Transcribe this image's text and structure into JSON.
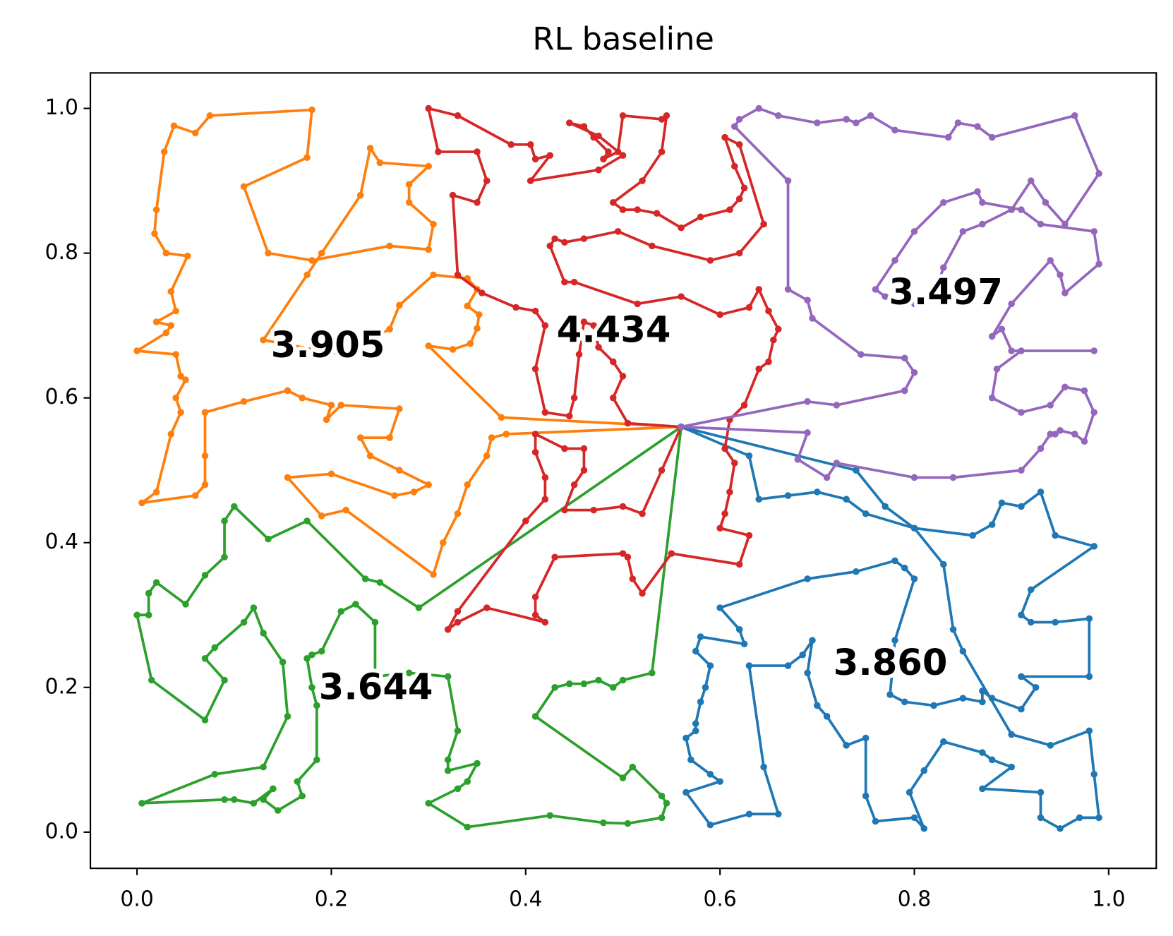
{
  "chart_data": {
    "type": "route",
    "title": "RL baseline",
    "xlim": [
      -0.048,
      1.049
    ],
    "ylim": [
      -0.05,
      1.049
    ],
    "xticks": [
      {
        "value": 0,
        "label": "0.0"
      },
      0.2,
      0.4,
      0.6,
      0.8,
      {
        "value": 1,
        "label": "1.0"
      }
    ],
    "yticks": [
      {
        "value": 0,
        "label": "0.0"
      },
      0.2,
      0.4,
      0.6,
      0.8,
      {
        "value": 1,
        "label": "1.0"
      }
    ],
    "series": [
      {
        "color": "#1f77b4",
        "label": "3.860",
        "x": [
          0.56,
          0.63,
          0.64,
          0.67,
          0.7,
          0.73,
          0.75,
          0.8,
          0.86,
          0.88,
          0.89,
          0.91,
          0.93,
          0.945,
          0.985,
          0.92,
          0.91,
          0.92,
          0.945,
          0.98,
          0.98,
          0.91,
          0.925,
          0.91,
          0.88,
          0.87,
          0.87,
          0.85,
          0.82,
          0.79,
          0.775,
          0.78,
          0.8,
          0.79,
          0.78,
          0.74,
          0.69,
          0.6,
          0.62,
          0.625,
          0.58,
          0.575,
          0.59,
          0.585,
          0.58,
          0.575,
          0.575,
          0.565,
          0.57,
          0.59,
          0.6,
          0.565,
          0.59,
          0.63,
          0.66,
          0.645,
          0.63,
          0.67,
          0.685,
          0.695,
          0.69,
          0.7,
          0.71,
          0.73,
          0.75,
          0.75,
          0.76,
          0.8,
          0.81,
          0.795,
          0.81,
          0.83,
          0.87,
          0.88,
          0.9,
          0.87,
          0.93,
          0.93,
          0.95,
          0.97,
          0.99,
          0.985,
          0.98,
          0.94,
          0.9,
          0.85,
          0.84,
          0.83,
          0.8,
          0.77,
          0.74,
          0.56
        ],
        "y": [
          0.56,
          0.52,
          0.46,
          0.465,
          0.47,
          0.46,
          0.44,
          0.42,
          0.41,
          0.425,
          0.455,
          0.45,
          0.47,
          0.41,
          0.395,
          0.335,
          0.3,
          0.29,
          0.29,
          0.295,
          0.215,
          0.215,
          0.2,
          0.17,
          0.185,
          0.195,
          0.18,
          0.185,
          0.175,
          0.18,
          0.19,
          0.265,
          0.35,
          0.365,
          0.375,
          0.36,
          0.35,
          0.31,
          0.28,
          0.26,
          0.27,
          0.25,
          0.23,
          0.2,
          0.18,
          0.15,
          0.14,
          0.13,
          0.1,
          0.08,
          0.07,
          0.055,
          0.01,
          0.025,
          0.025,
          0.09,
          0.23,
          0.23,
          0.245,
          0.265,
          0.22,
          0.175,
          0.16,
          0.12,
          0.13,
          0.05,
          0.015,
          0.02,
          0.005,
          0.055,
          0.085,
          0.125,
          0.11,
          0.1,
          0.09,
          0.06,
          0.055,
          0.02,
          0.005,
          0.02,
          0.02,
          0.08,
          0.14,
          0.12,
          0.135,
          0.25,
          0.28,
          0.37,
          0.42,
          0.45,
          0.5,
          0.56
        ]
      },
      {
        "color": "#ff7f0e",
        "label": "3.905",
        "x": [
          0.56,
          0.375,
          0.3,
          0.325,
          0.343,
          0.35,
          0.352,
          0.34,
          0.35,
          0.34,
          0.305,
          0.27,
          0.26,
          0.21,
          0.13,
          0.175,
          0.19,
          0.23,
          0.24,
          0.25,
          0.3,
          0.28,
          0.28,
          0.305,
          0.3,
          0.26,
          0.18,
          0.135,
          0.11,
          0.175,
          0.18,
          0.075,
          0.06,
          0.038,
          0.028,
          0.02,
          0.018,
          0.03,
          0.052,
          0.035,
          0.04,
          0.02,
          0.035,
          0.03,
          0.0,
          0.04,
          0.045,
          0.05,
          0.04,
          0.045,
          0.035,
          0.02,
          0.005,
          0.06,
          0.07,
          0.07,
          0.07,
          0.11,
          0.155,
          0.17,
          0.2,
          0.195,
          0.21,
          0.27,
          0.26,
          0.23,
          0.24,
          0.27,
          0.3,
          0.285,
          0.265,
          0.2,
          0.155,
          0.19,
          0.215,
          0.305,
          0.315,
          0.33,
          0.34,
          0.36,
          0.365,
          0.38,
          0.56
        ],
        "y": [
          0.56,
          0.573,
          0.672,
          0.667,
          0.675,
          0.696,
          0.715,
          0.727,
          0.75,
          0.765,
          0.77,
          0.728,
          0.695,
          0.66,
          0.68,
          0.77,
          0.8,
          0.88,
          0.945,
          0.925,
          0.92,
          0.895,
          0.87,
          0.84,
          0.805,
          0.81,
          0.79,
          0.8,
          0.892,
          0.932,
          0.998,
          0.99,
          0.966,
          0.976,
          0.94,
          0.86,
          0.827,
          0.8,
          0.796,
          0.747,
          0.72,
          0.705,
          0.7,
          0.69,
          0.665,
          0.66,
          0.63,
          0.625,
          0.6,
          0.58,
          0.55,
          0.47,
          0.455,
          0.465,
          0.48,
          0.52,
          0.58,
          0.595,
          0.61,
          0.6,
          0.59,
          0.57,
          0.59,
          0.585,
          0.545,
          0.545,
          0.52,
          0.5,
          0.48,
          0.47,
          0.465,
          0.495,
          0.49,
          0.437,
          0.445,
          0.356,
          0.4,
          0.44,
          0.48,
          0.52,
          0.545,
          0.55,
          0.56
        ]
      },
      {
        "color": "#2ca02c",
        "label": "3.644",
        "x": [
          0.56,
          0.53,
          0.5,
          0.49,
          0.475,
          0.46,
          0.445,
          0.43,
          0.41,
          0.5,
          0.51,
          0.54,
          0.545,
          0.54,
          0.505,
          0.48,
          0.425,
          0.34,
          0.3,
          0.33,
          0.34,
          0.35,
          0.32,
          0.32,
          0.33,
          0.32,
          0.28,
          0.245,
          0.245,
          0.225,
          0.21,
          0.19,
          0.18,
          0.175,
          0.18,
          0.185,
          0.185,
          0.165,
          0.17,
          0.145,
          0.13,
          0.14,
          0.12,
          0.1,
          0.09,
          0.005,
          0.08,
          0.13,
          0.155,
          0.15,
          0.13,
          0.12,
          0.11,
          0.08,
          0.07,
          0.09,
          0.07,
          0.015,
          0.0,
          0.012,
          0.012,
          0.02,
          0.05,
          0.07,
          0.09,
          0.09,
          0.1,
          0.135,
          0.175,
          0.235,
          0.25,
          0.29,
          0.56
        ],
        "y": [
          0.56,
          0.22,
          0.21,
          0.2,
          0.21,
          0.205,
          0.205,
          0.2,
          0.16,
          0.075,
          0.09,
          0.05,
          0.04,
          0.02,
          0.012,
          0.013,
          0.023,
          0.007,
          0.04,
          0.06,
          0.07,
          0.095,
          0.085,
          0.1,
          0.14,
          0.215,
          0.22,
          0.215,
          0.29,
          0.315,
          0.305,
          0.25,
          0.245,
          0.24,
          0.2,
          0.175,
          0.1,
          0.07,
          0.05,
          0.03,
          0.045,
          0.06,
          0.04,
          0.045,
          0.045,
          0.04,
          0.08,
          0.09,
          0.16,
          0.235,
          0.275,
          0.31,
          0.29,
          0.255,
          0.24,
          0.21,
          0.155,
          0.21,
          0.3,
          0.3,
          0.33,
          0.345,
          0.315,
          0.355,
          0.38,
          0.43,
          0.45,
          0.405,
          0.43,
          0.35,
          0.345,
          0.31,
          0.56
        ]
      },
      {
        "color": "#d62728",
        "label": "4.434",
        "x": [
          0.56,
          0.505,
          0.49,
          0.5,
          0.49,
          0.475,
          0.47,
          0.46,
          0.455,
          0.45,
          0.445,
          0.42,
          0.41,
          0.42,
          0.41,
          0.39,
          0.355,
          0.33,
          0.325,
          0.35,
          0.36,
          0.35,
          0.31,
          0.3,
          0.33,
          0.385,
          0.405,
          0.41,
          0.425,
          0.405,
          0.475,
          0.5,
          0.475,
          0.445,
          0.46,
          0.47,
          0.485,
          0.48,
          0.495,
          0.5,
          0.54,
          0.545,
          0.54,
          0.52,
          0.49,
          0.5,
          0.515,
          0.535,
          0.56,
          0.58,
          0.61,
          0.62,
          0.625,
          0.615,
          0.605,
          0.62,
          0.645,
          0.62,
          0.59,
          0.53,
          0.495,
          0.46,
          0.44,
          0.43,
          0.425,
          0.44,
          0.45,
          0.515,
          0.56,
          0.6,
          0.63,
          0.64,
          0.65,
          0.66,
          0.655,
          0.65,
          0.64,
          0.625,
          0.61,
          0.605,
          0.615,
          0.61,
          0.605,
          0.6,
          0.63,
          0.62,
          0.55,
          0.52,
          0.51,
          0.505,
          0.5,
          0.43,
          0.41,
          0.41,
          0.42,
          0.36,
          0.33,
          0.32,
          0.33,
          0.4,
          0.42,
          0.42,
          0.41,
          0.41,
          0.44,
          0.46,
          0.46,
          0.45,
          0.44,
          0.47,
          0.5,
          0.52,
          0.54,
          0.56
        ],
        "y": [
          0.56,
          0.565,
          0.6,
          0.63,
          0.65,
          0.67,
          0.7,
          0.705,
          0.66,
          0.6,
          0.575,
          0.58,
          0.64,
          0.7,
          0.72,
          0.725,
          0.745,
          0.77,
          0.88,
          0.87,
          0.9,
          0.94,
          0.94,
          1.0,
          0.99,
          0.95,
          0.95,
          0.93,
          0.935,
          0.9,
          0.915,
          0.935,
          0.962,
          0.98,
          0.975,
          0.96,
          0.94,
          0.93,
          0.94,
          0.99,
          0.985,
          0.99,
          0.94,
          0.9,
          0.87,
          0.86,
          0.86,
          0.855,
          0.835,
          0.85,
          0.86,
          0.875,
          0.89,
          0.92,
          0.96,
          0.95,
          0.84,
          0.8,
          0.79,
          0.81,
          0.83,
          0.82,
          0.815,
          0.82,
          0.81,
          0.76,
          0.76,
          0.73,
          0.74,
          0.715,
          0.725,
          0.75,
          0.72,
          0.695,
          0.68,
          0.65,
          0.64,
          0.59,
          0.57,
          0.53,
          0.51,
          0.47,
          0.44,
          0.42,
          0.41,
          0.37,
          0.385,
          0.33,
          0.35,
          0.38,
          0.385,
          0.38,
          0.325,
          0.3,
          0.29,
          0.31,
          0.29,
          0.28,
          0.305,
          0.43,
          0.46,
          0.49,
          0.525,
          0.55,
          0.53,
          0.53,
          0.5,
          0.48,
          0.445,
          0.445,
          0.45,
          0.44,
          0.5,
          0.56
        ]
      },
      {
        "color": "#9467bd",
        "label": "3.497",
        "x": [
          0.56,
          0.69,
          0.68,
          0.71,
          0.72,
          0.8,
          0.84,
          0.91,
          0.93,
          0.94,
          0.945,
          0.95,
          0.965,
          0.975,
          0.985,
          0.975,
          0.955,
          0.94,
          0.91,
          0.88,
          0.885,
          0.91,
          0.985,
          0.9,
          0.89,
          0.88,
          0.9,
          0.94,
          0.95,
          0.955,
          0.99,
          0.985,
          0.93,
          0.91,
          0.87,
          0.865,
          0.83,
          0.8,
          0.78,
          0.76,
          0.77,
          0.8,
          0.82,
          0.83,
          0.85,
          0.87,
          0.9,
          0.92,
          0.935,
          0.955,
          0.99,
          0.965,
          0.88,
          0.865,
          0.845,
          0.835,
          0.78,
          0.755,
          0.74,
          0.73,
          0.7,
          0.66,
          0.64,
          0.62,
          0.615,
          0.67,
          0.67,
          0.69,
          0.695,
          0.745,
          0.79,
          0.8,
          0.79,
          0.72,
          0.69,
          0.56
        ],
        "y": [
          0.56,
          0.552,
          0.515,
          0.49,
          0.51,
          0.49,
          0.49,
          0.5,
          0.53,
          0.55,
          0.55,
          0.555,
          0.55,
          0.54,
          0.58,
          0.61,
          0.615,
          0.59,
          0.58,
          0.6,
          0.64,
          0.665,
          0.665,
          0.665,
          0.695,
          0.685,
          0.73,
          0.79,
          0.77,
          0.745,
          0.785,
          0.83,
          0.84,
          0.86,
          0.87,
          0.885,
          0.87,
          0.83,
          0.79,
          0.75,
          0.74,
          0.73,
          0.74,
          0.78,
          0.83,
          0.84,
          0.86,
          0.9,
          0.87,
          0.84,
          0.91,
          0.99,
          0.96,
          0.975,
          0.98,
          0.96,
          0.97,
          0.99,
          0.98,
          0.985,
          0.98,
          0.99,
          1.0,
          0.985,
          0.975,
          0.9,
          0.75,
          0.735,
          0.71,
          0.66,
          0.655,
          0.635,
          0.61,
          0.59,
          0.595,
          0.56
        ]
      }
    ]
  }
}
